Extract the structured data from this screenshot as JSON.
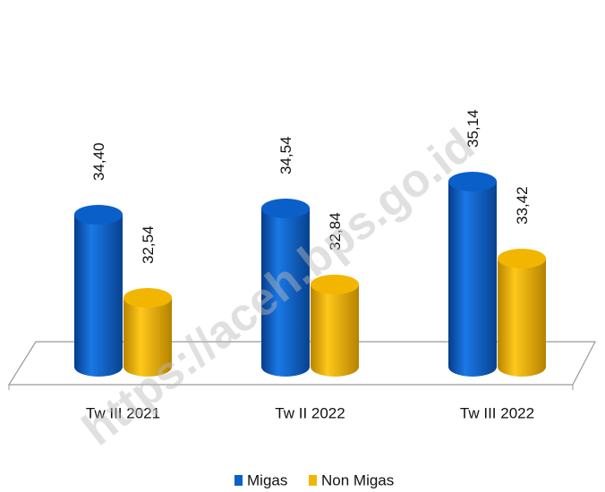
{
  "chart_data": {
    "type": "bar3d",
    "categories": [
      "Tw  III 2021",
      "Tw II 2022",
      "Tw  III 2022"
    ],
    "series": [
      {
        "name": "Migas",
        "color": "#0b5fc8",
        "values": [
          34.4,
          34.54,
          35.14
        ],
        "value_labels": [
          "34,40",
          "34,54",
          "35,14"
        ]
      },
      {
        "name": "Non Migas",
        "color": "#f2b600",
        "values": [
          32.54,
          32.84,
          33.42
        ],
        "value_labels": [
          "32,54",
          "32,84",
          "33,42"
        ]
      }
    ],
    "ylim": [
      31,
      36
    ],
    "legend": "bottom",
    "watermark": "https://aceh.bps.go.id"
  }
}
